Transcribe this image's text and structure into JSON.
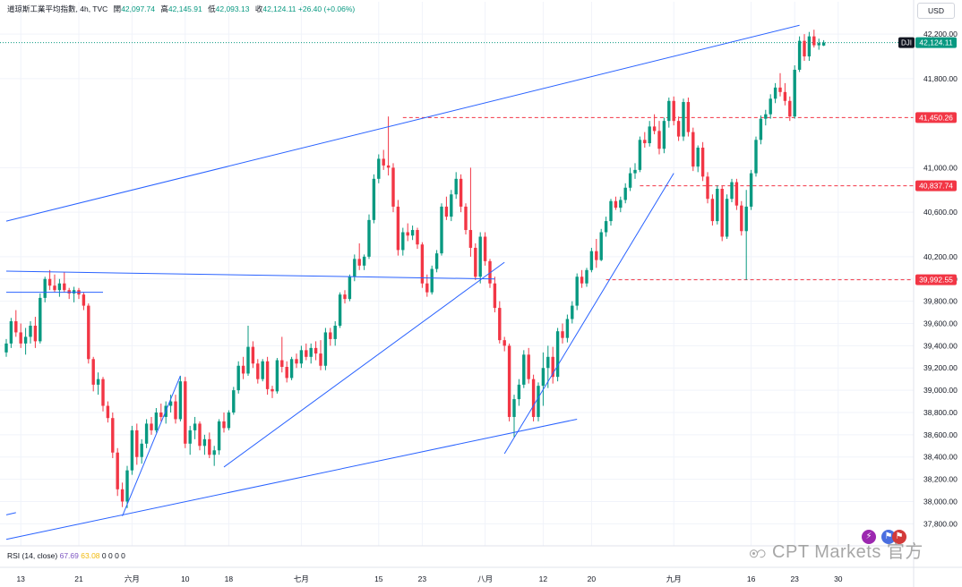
{
  "header": {
    "symbol_name": "道琼斯工業平均指數",
    "interval": "4h",
    "source": "TVC",
    "open_label": "開",
    "open": "42,097.74",
    "high_label": "高",
    "high": "42,145.91",
    "low_label": "低",
    "low": "42,093.13",
    "close_label": "收",
    "close": "42,124.11",
    "change": "+26.40 (+0.06%)"
  },
  "currency": "USD",
  "indicator": {
    "label": "RSI (14, close)",
    "value1": "67.69",
    "value2": "63.08",
    "extras": "0 0 0 0"
  },
  "watermark": "CPT Markets 官方",
  "colors": {
    "up": "#089981",
    "down": "#f23645",
    "trendline": "#2962ff",
    "level": "#f23645",
    "last": "#089981"
  },
  "chart_data": {
    "type": "candlestick",
    "symbol": "DJI",
    "ylim": [
      37650,
      42330
    ],
    "y_ticks": [
      37800,
      38000,
      38200,
      38400,
      38600,
      38800,
      39000,
      39200,
      39400,
      39600,
      39800,
      40000,
      40200,
      40600,
      41000,
      41800,
      42200
    ],
    "y_tick_labels": [
      "37,800.00",
      "38,000.00",
      "38,200.00",
      "38,400.00",
      "38,600.00",
      "38,800.00",
      "39,000.00",
      "39,200.00",
      "39,400.00",
      "39,600.00",
      "39,800.00",
      "40,000.00",
      "40,200.00",
      "40,600.00",
      "41,000.00",
      "41,800.00",
      "42,200.00"
    ],
    "x_labels": [
      {
        "label": "13",
        "bar": 3
      },
      {
        "label": "21",
        "bar": 15
      },
      {
        "label": "六月",
        "bar": 26
      },
      {
        "label": "10",
        "bar": 37
      },
      {
        "label": "18",
        "bar": 46
      },
      {
        "label": "七月",
        "bar": 61
      },
      {
        "label": "15",
        "bar": 77
      },
      {
        "label": "23",
        "bar": 86
      },
      {
        "label": "八月",
        "bar": 99
      },
      {
        "label": "12",
        "bar": 111
      },
      {
        "label": "20",
        "bar": 121
      },
      {
        "label": "九月",
        "bar": 138
      },
      {
        "label": "16",
        "bar": 154
      },
      {
        "label": "23",
        "bar": 163
      },
      {
        "label": "30",
        "bar": 172
      }
    ],
    "price_levels": [
      {
        "value": 41450.26,
        "label": "41,450.26",
        "from_bar": 82
      },
      {
        "value": 40837.74,
        "label": "40,837.74",
        "from_bar": 131
      },
      {
        "value": 39992.55,
        "label": "39,992.55",
        "from_bar": 124
      }
    ],
    "last_price": {
      "label": "DJI",
      "value": 42124.11,
      "text": "42,124.11"
    },
    "trendlines": [
      {
        "from": [
          0,
          40520
        ],
        "to": [
          164,
          42280
        ]
      },
      {
        "from": [
          0,
          37660
        ],
        "to": [
          118,
          38740
        ]
      },
      {
        "from": [
          0,
          40070
        ],
        "to": [
          101,
          40000
        ]
      },
      {
        "from": [
          0,
          39880
        ],
        "to": [
          20,
          39880
        ]
      },
      {
        "from": [
          24,
          37870
        ],
        "to": [
          36,
          39130
        ]
      },
      {
        "from": [
          45,
          38310
        ],
        "to": [
          103,
          40150
        ]
      },
      {
        "from": [
          103,
          38430
        ],
        "to": [
          138,
          40950
        ]
      },
      {
        "from": [
          0,
          37880
        ],
        "to": [
          2,
          37900
        ]
      }
    ],
    "ohlc": [
      [
        39340,
        39460,
        39300,
        39420
      ],
      [
        39420,
        39650,
        39380,
        39620
      ],
      [
        39620,
        39720,
        39480,
        39520
      ],
      [
        39520,
        39600,
        39380,
        39420
      ],
      [
        39420,
        39560,
        39320,
        39480
      ],
      [
        39480,
        39620,
        39420,
        39580
      ],
      [
        39580,
        39660,
        39380,
        39440
      ],
      [
        39440,
        39870,
        39420,
        39830
      ],
      [
        39830,
        40020,
        39790,
        40000
      ],
      [
        40000,
        40080,
        39900,
        39940
      ],
      [
        39940,
        40040,
        39880,
        39900
      ],
      [
        39900,
        40000,
        39840,
        39960
      ],
      [
        39960,
        40060,
        39880,
        39900
      ],
      [
        39900,
        39920,
        39820,
        39870
      ],
      [
        39870,
        39930,
        39790,
        39900
      ],
      [
        39900,
        39920,
        39820,
        39860
      ],
      [
        39860,
        39880,
        39720,
        39760
      ],
      [
        39760,
        39780,
        39240,
        39280
      ],
      [
        39280,
        39300,
        38990,
        39050
      ],
      [
        39050,
        39160,
        38960,
        39100
      ],
      [
        39100,
        39120,
        38810,
        38860
      ],
      [
        38860,
        38900,
        38710,
        38750
      ],
      [
        38750,
        38800,
        38390,
        38440
      ],
      [
        38440,
        38480,
        38050,
        38110
      ],
      [
        38110,
        38170,
        37950,
        38000
      ],
      [
        38000,
        38320,
        37940,
        38280
      ],
      [
        38280,
        38680,
        38240,
        38640
      ],
      [
        38640,
        38700,
        38330,
        38400
      ],
      [
        38400,
        38560,
        38340,
        38520
      ],
      [
        38520,
        38740,
        38480,
        38700
      ],
      [
        38700,
        38760,
        38600,
        38640
      ],
      [
        38640,
        38840,
        38620,
        38800
      ],
      [
        38800,
        38880,
        38720,
        38760
      ],
      [
        38760,
        38900,
        38700,
        38860
      ],
      [
        38860,
        38960,
        38800,
        38900
      ],
      [
        38900,
        38960,
        38700,
        38740
      ],
      [
        38740,
        39130,
        38720,
        39080
      ],
      [
        39080,
        39120,
        38480,
        38520
      ],
      [
        38520,
        38680,
        38420,
        38640
      ],
      [
        38640,
        38760,
        38560,
        38700
      ],
      [
        38700,
        38720,
        38460,
        38500
      ],
      [
        38500,
        38600,
        38420,
        38560
      ],
      [
        38560,
        38620,
        38390,
        38420
      ],
      [
        38420,
        38500,
        38320,
        38460
      ],
      [
        38460,
        38740,
        38420,
        38720
      ],
      [
        38720,
        38800,
        38620,
        38660
      ],
      [
        38660,
        38820,
        38640,
        38800
      ],
      [
        38800,
        39030,
        38780,
        39000
      ],
      [
        39000,
        39260,
        38970,
        39220
      ],
      [
        39220,
        39300,
        39100,
        39150
      ],
      [
        39150,
        39580,
        39130,
        39390
      ],
      [
        39390,
        39440,
        39200,
        39240
      ],
      [
        39240,
        39280,
        39060,
        39100
      ],
      [
        39100,
        39280,
        39080,
        39260
      ],
      [
        39260,
        39300,
        38960,
        39010
      ],
      [
        39010,
        39040,
        38930,
        38990
      ],
      [
        38990,
        39290,
        38970,
        39270
      ],
      [
        39270,
        39480,
        39160,
        39210
      ],
      [
        39210,
        39260,
        39070,
        39110
      ],
      [
        39110,
        39300,
        39090,
        39280
      ],
      [
        39280,
        39330,
        39200,
        39240
      ],
      [
        39240,
        39400,
        39200,
        39360
      ],
      [
        39360,
        39420,
        39270,
        39300
      ],
      [
        39300,
        39420,
        39240,
        39380
      ],
      [
        39380,
        39440,
        39270,
        39330
      ],
      [
        39330,
        39450,
        39180,
        39220
      ],
      [
        39220,
        39560,
        39180,
        39520
      ],
      [
        39520,
        39560,
        39400,
        39460
      ],
      [
        39460,
        39620,
        39400,
        39580
      ],
      [
        39580,
        39880,
        39560,
        39860
      ],
      [
        39860,
        39900,
        39780,
        39820
      ],
      [
        39820,
        40040,
        39800,
        40020
      ],
      [
        40020,
        40220,
        39980,
        40180
      ],
      [
        40180,
        40320,
        40080,
        40120
      ],
      [
        40120,
        40220,
        40080,
        40200
      ],
      [
        40200,
        40580,
        40180,
        40530
      ],
      [
        40530,
        40940,
        40500,
        40900
      ],
      [
        40900,
        41120,
        40860,
        41080
      ],
      [
        41080,
        41160,
        40980,
        41020
      ],
      [
        41020,
        41460,
        40930,
        41000
      ],
      [
        41000,
        41040,
        40600,
        40650
      ],
      [
        40650,
        40710,
        40210,
        40260
      ],
      [
        40260,
        40460,
        40210,
        40420
      ],
      [
        40420,
        40500,
        40340,
        40390
      ],
      [
        40390,
        40480,
        40350,
        40440
      ],
      [
        40440,
        40460,
        40270,
        40310
      ],
      [
        40310,
        40330,
        39920,
        39960
      ],
      [
        39960,
        40040,
        39840,
        39880
      ],
      [
        39880,
        40120,
        39860,
        40090
      ],
      [
        40090,
        40260,
        40060,
        40230
      ],
      [
        40230,
        40680,
        40210,
        40650
      ],
      [
        40650,
        40740,
        40530,
        40560
      ],
      [
        40560,
        40800,
        40520,
        40760
      ],
      [
        40760,
        40960,
        40720,
        40900
      ],
      [
        40900,
        40940,
        40600,
        40650
      ],
      [
        40650,
        40680,
        40400,
        40440
      ],
      [
        40440,
        41000,
        40200,
        40280
      ],
      [
        40280,
        40320,
        39990,
        40020
      ],
      [
        40020,
        40420,
        39960,
        40380
      ],
      [
        40380,
        40420,
        40120,
        40160
      ],
      [
        40160,
        40180,
        39920,
        39960
      ],
      [
        39960,
        40020,
        39700,
        39740
      ],
      [
        39740,
        39800,
        39420,
        39450
      ],
      [
        39450,
        39480,
        39350,
        39400
      ],
      [
        39400,
        39420,
        38720,
        38760
      ],
      [
        38760,
        38960,
        38580,
        38920
      ],
      [
        38920,
        39100,
        38860,
        39050
      ],
      [
        39050,
        39360,
        39020,
        39320
      ],
      [
        39320,
        39380,
        39060,
        39100
      ],
      [
        39100,
        39140,
        38720,
        38760
      ],
      [
        38760,
        39070,
        38720,
        39040
      ],
      [
        39040,
        39340,
        38860,
        39200
      ],
      [
        39200,
        39400,
        39020,
        39300
      ],
      [
        39300,
        39390,
        39060,
        39120
      ],
      [
        39120,
        39560,
        39080,
        39530
      ],
      [
        39530,
        39600,
        39420,
        39470
      ],
      [
        39470,
        39680,
        39430,
        39640
      ],
      [
        39640,
        39800,
        39600,
        39760
      ],
      [
        39760,
        40050,
        39720,
        40020
      ],
      [
        40020,
        40080,
        39920,
        39960
      ],
      [
        39960,
        40100,
        39930,
        40080
      ],
      [
        40080,
        40280,
        40060,
        40250
      ],
      [
        40250,
        40360,
        40100,
        40170
      ],
      [
        40170,
        40450,
        40160,
        40420
      ],
      [
        40420,
        40560,
        40380,
        40520
      ],
      [
        40520,
        40720,
        40480,
        40700
      ],
      [
        40700,
        40740,
        40620,
        40640
      ],
      [
        40640,
        40740,
        40600,
        40710
      ],
      [
        40710,
        40860,
        40680,
        40820
      ],
      [
        40820,
        41000,
        40790,
        40950
      ],
      [
        40950,
        41040,
        40900,
        40980
      ],
      [
        40980,
        41280,
        40960,
        41250
      ],
      [
        41250,
        41320,
        41180,
        41220
      ],
      [
        41220,
        41420,
        41190,
        41370
      ],
      [
        41370,
        41480,
        41300,
        41330
      ],
      [
        41330,
        41420,
        41120,
        41170
      ],
      [
        41170,
        41450,
        41130,
        41420
      ],
      [
        41420,
        41630,
        41360,
        41600
      ],
      [
        41600,
        41640,
        41380,
        41420
      ],
      [
        41420,
        41460,
        41240,
        41280
      ],
      [
        41280,
        41620,
        41240,
        41590
      ],
      [
        41590,
        41630,
        41280,
        41320
      ],
      [
        41320,
        41360,
        40970,
        41010
      ],
      [
        41010,
        41200,
        40960,
        41180
      ],
      [
        41180,
        41230,
        40880,
        40920
      ],
      [
        40920,
        40960,
        40680,
        40720
      ],
      [
        40720,
        40760,
        40480,
        40520
      ],
      [
        40520,
        40840,
        40490,
        40810
      ],
      [
        40810,
        40840,
        40340,
        40380
      ],
      [
        40380,
        40760,
        40360,
        40720
      ],
      [
        40720,
        40900,
        40690,
        40870
      ],
      [
        40870,
        40900,
        40620,
        40660
      ],
      [
        40660,
        40700,
        40390,
        40430
      ],
      [
        40430,
        40800,
        39990,
        40650
      ],
      [
        40650,
        40980,
        40620,
        40950
      ],
      [
        40950,
        41280,
        40920,
        41250
      ],
      [
        41250,
        41470,
        41210,
        41440
      ],
      [
        41440,
        41520,
        41380,
        41480
      ],
      [
        41480,
        41660,
        41440,
        41620
      ],
      [
        41620,
        41760,
        41580,
        41720
      ],
      [
        41720,
        41850,
        41640,
        41680
      ],
      [
        41680,
        41760,
        41560,
        41600
      ],
      [
        41600,
        41640,
        41420,
        41460
      ],
      [
        41460,
        41920,
        41440,
        41880
      ],
      [
        41880,
        42180,
        41860,
        42140
      ],
      [
        42140,
        42200,
        41960,
        42000
      ],
      [
        42000,
        42220,
        41960,
        42180
      ],
      [
        42180,
        42240,
        42080,
        42100
      ],
      [
        42100,
        42160,
        42060,
        42120
      ],
      [
        42097.74,
        42145.91,
        42093.13,
        42124.11
      ]
    ]
  }
}
